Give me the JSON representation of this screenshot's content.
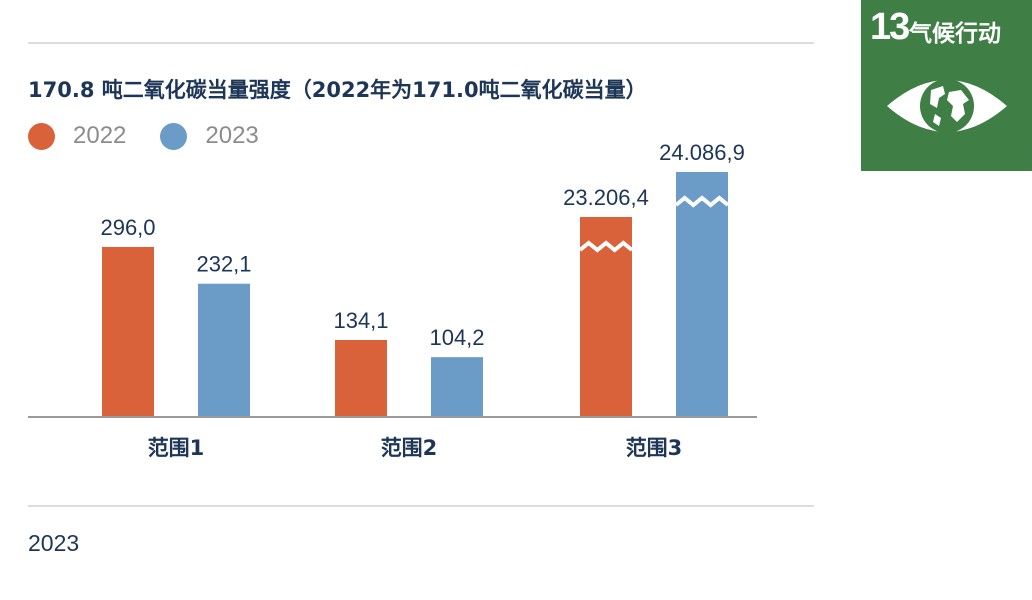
{
  "title": "170.8 吨二氧化碳当量强度（2022年为171.0吨二氧化碳当量）",
  "legend": [
    {
      "label": "2022",
      "color": "#d9623b"
    },
    {
      "label": "2023",
      "color": "#6b9cc8"
    }
  ],
  "footer_year": "2023",
  "sdg": {
    "number": "13",
    "title": "气候行动",
    "icon": "eye-globe-icon",
    "color": "#3f7e44"
  },
  "chart_data": {
    "type": "bar",
    "categories": [
      "范围1",
      "范围2",
      "范围3"
    ],
    "series": [
      {
        "name": "2022",
        "values": [
          296.0,
          134.1,
          23206.4
        ],
        "labels": [
          "296,0",
          "134,1",
          "23.206,4"
        ],
        "color": "#d9623b"
      },
      {
        "name": "2023",
        "values": [
          232.1,
          104.2,
          24086.9
        ],
        "labels": [
          "232,1",
          "104,2",
          "24.086,9"
        ],
        "color": "#6b9cc8"
      }
    ],
    "axis_break": true,
    "title": "170.8 吨二氧化碳当量强度（2022年为171.0吨二氧化碳当量）",
    "xlabel": "",
    "ylabel": "",
    "grid": false,
    "legend_position": "top-left"
  }
}
